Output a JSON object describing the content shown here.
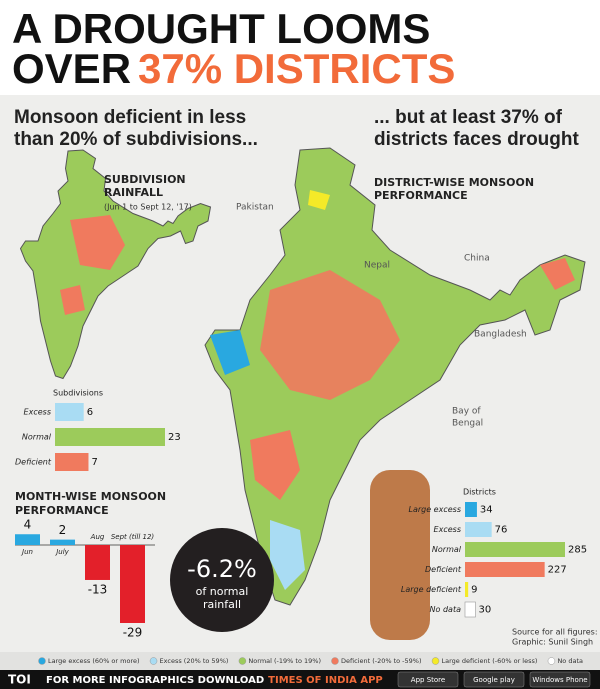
{
  "header": {
    "line1": "A DROUGHT LOOMS",
    "line2": "OVER",
    "highlight": "37% DISTRICTS"
  },
  "left_heading": [
    "Monsoon deficient in less",
    "than 20% of subdivisions..."
  ],
  "right_heading": [
    "... but at least 37% of",
    "districts faces drought"
  ],
  "left_map": {
    "title": [
      "SUBDIVISION",
      "RAINFALL"
    ],
    "note": "(Jun 1 to Sept 12, '17)"
  },
  "right_map": {
    "title": [
      "DISTRICT-WISE MONSOON",
      "PERFORMANCE"
    ],
    "places": [
      "Pakistan",
      "Nepal",
      "China",
      "Bangladesh",
      "Bay of",
      "Bengal"
    ]
  },
  "callout": {
    "value": "-6.2%",
    "text": [
      "of normal",
      "rainfall"
    ]
  },
  "source": [
    "Source for all figures: IMD",
    "Graphic: Sunil Singh"
  ],
  "legend": [
    {
      "label": "Large excess (60% or more)",
      "color": "#29a8e0"
    },
    {
      "label": "Excess (20% to 59%)",
      "color": "#a9dcf3"
    },
    {
      "label": "Normal (-19% to 19%)",
      "color": "#9ccb5b"
    },
    {
      "label": "Deficient (-20% to -59%)",
      "color": "#f07a5e"
    },
    {
      "label": "Large deficient (-60% or less)",
      "color": "#f4ea28"
    },
    {
      "label": "No data",
      "color": "#ffffff"
    }
  ],
  "footer": {
    "brand": "TOI",
    "text": "FOR MORE INFOGRAPHICS DOWNLOAD",
    "app": "TIMES OF INDIA APP",
    "stores": [
      "App Store",
      "Google play",
      "Windows Phone"
    ]
  },
  "chart_data": [
    {
      "type": "bar",
      "orientation": "horizontal",
      "title": "Subdivisions",
      "categories": [
        "Excess",
        "Normal",
        "Deficient"
      ],
      "values": [
        6,
        23,
        7
      ],
      "colors": [
        "#a9dcf3",
        "#9ccb5b",
        "#f07a5e"
      ]
    },
    {
      "type": "bar",
      "orientation": "vertical",
      "title": [
        "MONTH-WISE MONSOON",
        "PERFORMANCE"
      ],
      "categories": [
        "Jun",
        "July",
        "Aug",
        "Sept (till 12)"
      ],
      "values": [
        4,
        2,
        -13,
        -29
      ],
      "colors": [
        "#29a8e0",
        "#29a8e0",
        "#e3202a",
        "#e3202a"
      ]
    },
    {
      "type": "bar",
      "orientation": "horizontal",
      "title": "Districts",
      "categories": [
        "Large excess",
        "Excess",
        "Normal",
        "Deficient",
        "Large deficient",
        "No data"
      ],
      "values": [
        34,
        76,
        285,
        227,
        9,
        30
      ],
      "colors": [
        "#29a8e0",
        "#a9dcf3",
        "#9ccb5b",
        "#f07a5e",
        "#f4ea28",
        "#ffffff"
      ]
    }
  ]
}
